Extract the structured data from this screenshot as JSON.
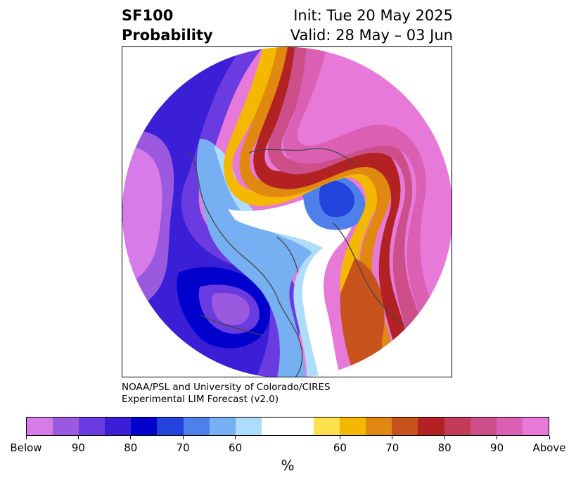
{
  "header": {
    "product": "SF100",
    "subtitle": "Probability",
    "init": "Init: Tue 20 May 2025",
    "valid": "Valid: 28 May – 03 Jun"
  },
  "credit": {
    "line1": "NOAA/PSL and University of Colorado/CIRES",
    "line2": "Experimental LIM Forecast (v2.0)"
  },
  "colorbar": {
    "colors": [
      "#d67be8",
      "#9b59e0",
      "#6a3be0",
      "#3a1fd6",
      "#0000cd",
      "#2244dd",
      "#4f7fe8",
      "#77b0f2",
      "#aedcfb",
      "#ffffff",
      "#ffffff",
      "#ffe14d",
      "#f5b800",
      "#e0880f",
      "#c8521c",
      "#b22222",
      "#c23b5a",
      "#cc4f8a",
      "#db60b4",
      "#e77ad9"
    ],
    "tick_labels": [
      "Below",
      "90",
      "80",
      "70",
      "60",
      "60",
      "70",
      "80",
      "90",
      "Above"
    ],
    "unit": "%"
  },
  "legend_colors": {
    "below_strong": "#d67be8",
    "neutral": "#ffffff",
    "above_strong": "#e77ad9"
  }
}
